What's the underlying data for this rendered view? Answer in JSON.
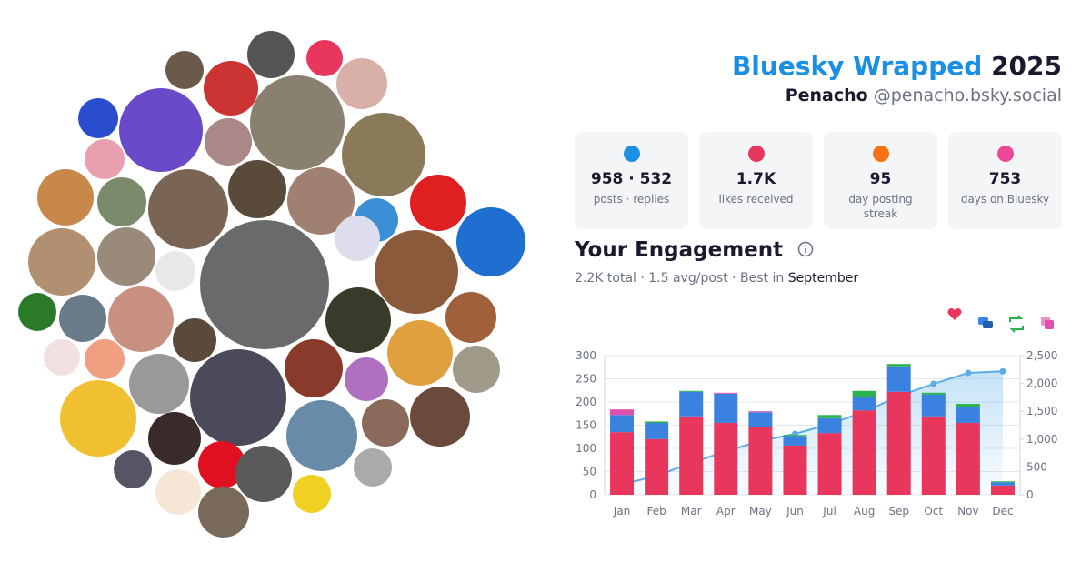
{
  "header": {
    "title": "Bluesky Wrapped",
    "year": "2025",
    "name": "Penacho",
    "handle": "@penacho.bsky.social"
  },
  "stats": [
    {
      "value": "958 · 532",
      "label": "posts · replies"
    },
    {
      "value": "1.7K",
      "label": "likes received"
    },
    {
      "value": "95",
      "label": "day posting streak"
    },
    {
      "value": "753",
      "label": "days on Bluesky"
    }
  ],
  "engagement": {
    "title": "Your Engagement",
    "summary": "2.2K total · 1.5 avg/post · Best in",
    "best": "September"
  },
  "chart_data": {
    "type": "bar",
    "stacked": true,
    "categories": [
      "Jan",
      "Feb",
      "Mar",
      "Apr",
      "May",
      "Jun",
      "Jul",
      "Aug",
      "Sep",
      "Oct",
      "Nov",
      "Dec"
    ],
    "series": [
      {
        "color": "#e8365d",
        "values": [
          135,
          120,
          169,
          155,
          147,
          106,
          133,
          182,
          222,
          169,
          155,
          20
        ]
      },
      {
        "color": "#3b82e0",
        "values": [
          37,
          35,
          53,
          63,
          31,
          21,
          32,
          28,
          55,
          47,
          35,
          7
        ]
      },
      {
        "color": "#2bb24c",
        "values": [
          0,
          3,
          2,
          0,
          0,
          2,
          7,
          14,
          5,
          4,
          6,
          2
        ]
      },
      {
        "color": "#e04fb0",
        "values": [
          12,
          0,
          0,
          2,
          2,
          0,
          0,
          0,
          0,
          0,
          0,
          0
        ]
      },
      {
        "type": "area",
        "axis": "y2",
        "color": "#5aaee8",
        "values": [
          184,
          342,
          566,
          786,
          966,
          1095,
          1267,
          1491,
          1773,
          1993,
          2189,
          2218
        ]
      }
    ],
    "ylim": [
      0,
      300
    ],
    "yticks": [
      0,
      50,
      100,
      150,
      200,
      250,
      300
    ],
    "y2lim": [
      0,
      2500
    ],
    "y2ticks": [
      0,
      500,
      {
        "value": 1000,
        "label": "1,000"
      },
      {
        "value": 1500,
        "label": "1,500"
      },
      {
        "value": 2000,
        "label": "2,000"
      },
      {
        "value": 2500,
        "label": "2,500"
      }
    ],
    "grid": true
  }
}
